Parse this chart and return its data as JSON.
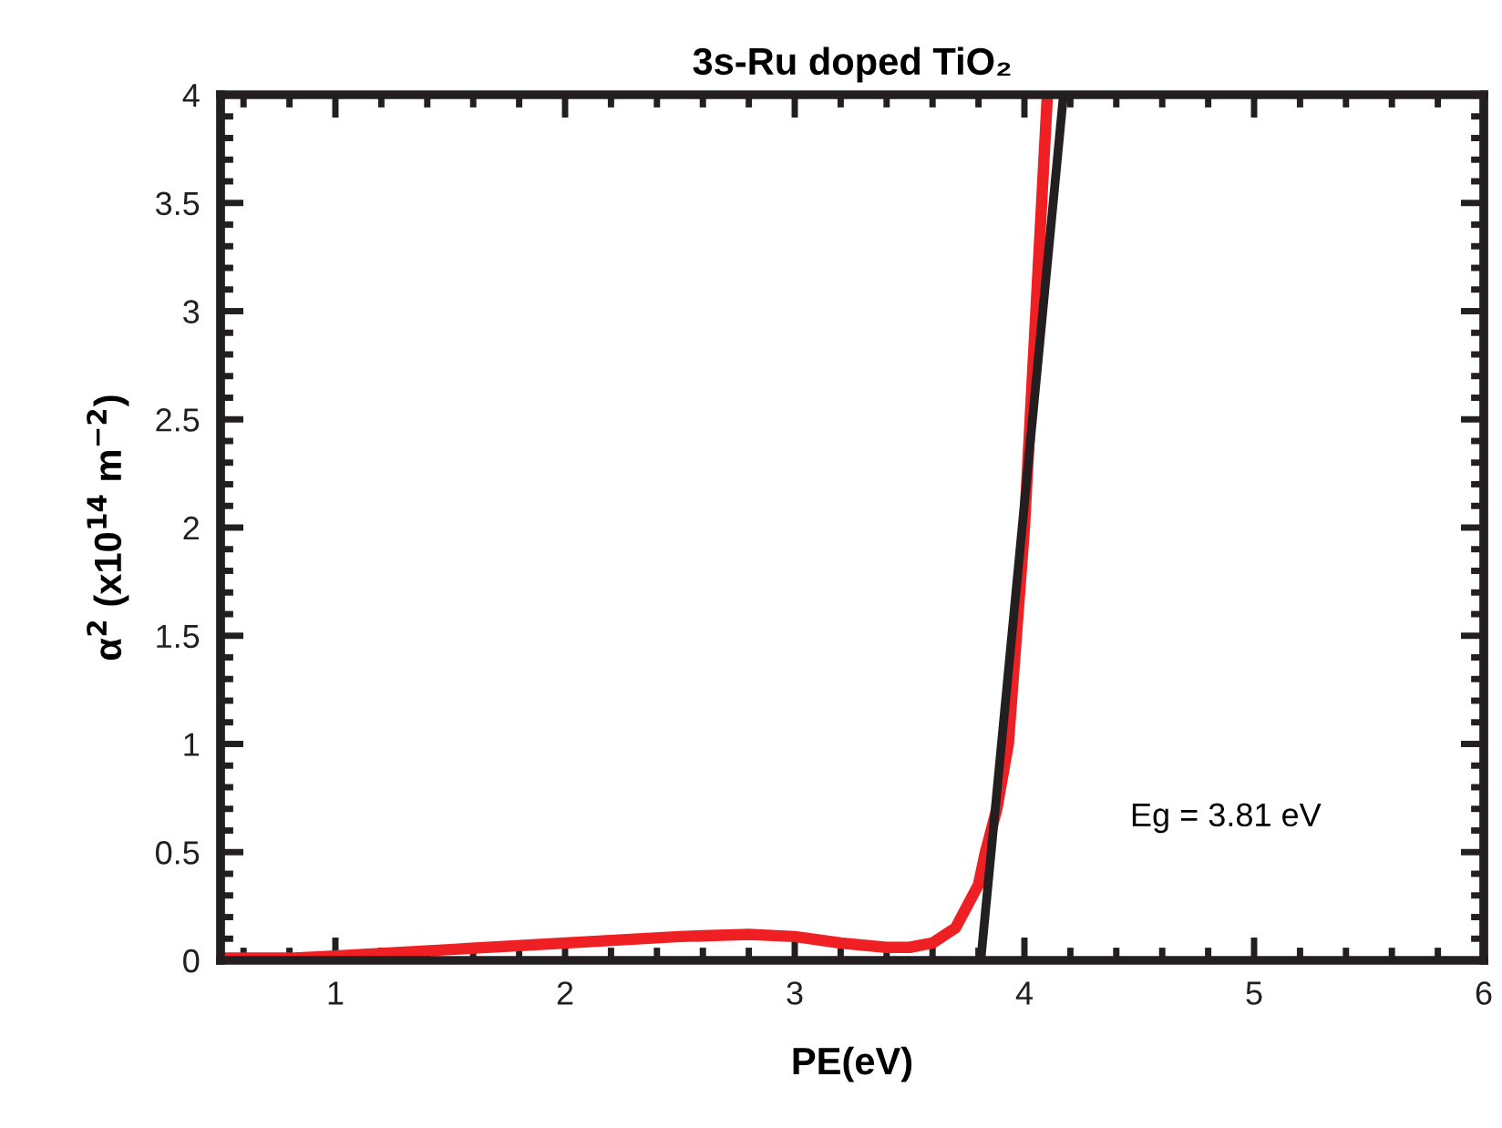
{
  "chart_data": {
    "type": "line",
    "title": "3s-Ru doped TiO₂",
    "xlabel": "PE(eV)",
    "ylabel": "α$^{2}$ (x10$^{14}$ m$^{−2}$)",
    "series": [
      {
        "color": "#ee2024",
        "x": [
          0.5,
          0.8,
          1.0,
          1.5,
          2.0,
          2.5,
          2.8,
          3.0,
          3.2,
          3.4,
          3.5,
          3.6,
          3.7,
          3.8,
          3.83,
          3.88,
          3.93,
          4.0,
          4.05,
          4.1
        ],
        "values": [
          0.01,
          0.01,
          0.02,
          0.05,
          0.08,
          0.11,
          0.12,
          0.11,
          0.08,
          0.06,
          0.06,
          0.08,
          0.15,
          0.35,
          0.5,
          0.7,
          1.0,
          2.0,
          3.0,
          4.0
        ]
      },
      {
        "color": "#231f20",
        "x": [
          3.81,
          4.17
        ],
        "values": [
          0,
          4
        ]
      }
    ],
    "annotations": [
      "Eg = 3.81 eV"
    ],
    "xlim": [
      0.5,
      6
    ],
    "xticks": [
      1,
      2,
      3,
      4,
      5,
      6
    ],
    "ylim": [
      0,
      4
    ],
    "yticks": [
      0,
      0.5,
      1,
      1.5,
      2,
      2.5,
      3,
      3.5,
      4
    ],
    "grid": false,
    "marker": "none",
    "line_style": "solid"
  }
}
